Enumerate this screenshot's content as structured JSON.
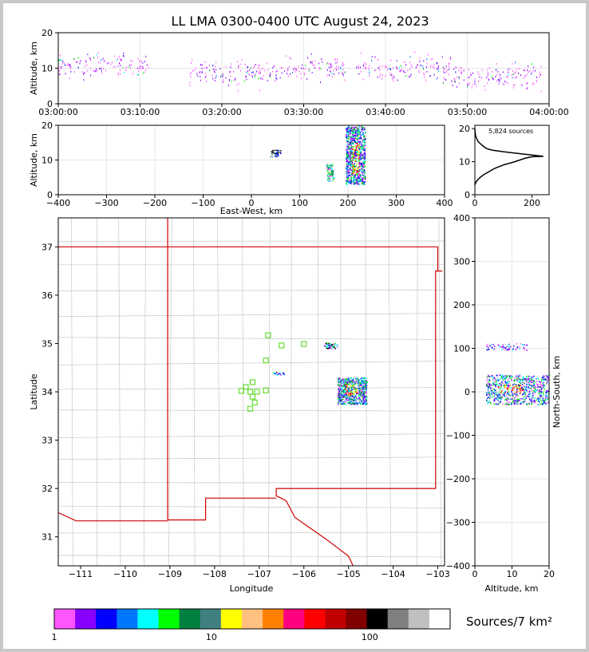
{
  "title": "LL LMA 0300-0400 UTC August 24, 2023",
  "colorbar": {
    "label": "Sources/7 km²",
    "ticks": [
      "1",
      "10",
      "100"
    ],
    "colors": [
      "#ff55ff",
      "#8800ff",
      "#0000ff",
      "#0077ff",
      "#00ffff",
      "#00ff00",
      "#008040",
      "#408080",
      "#ffff00",
      "#ffc080",
      "#ff8000",
      "#ff0080",
      "#ff0000",
      "#c00000",
      "#800000",
      "#000000",
      "#808080",
      "#c0c0c0",
      "#ffffff"
    ]
  },
  "source_count": "5,824 sources",
  "chart_data": [
    {
      "panel": "altitude-time",
      "type": "scatter",
      "xlabel": "",
      "ylabel": "Altitude, km",
      "x_ticks": [
        "03:00:00",
        "03:10:00",
        "03:20:00",
        "03:30:00",
        "03:40:00",
        "03:50:00",
        "04:00:00"
      ],
      "y_ticks": [
        "0",
        "10",
        "20"
      ],
      "xlim": [
        "03:00:00",
        "04:00:00"
      ],
      "ylim": [
        0,
        20
      ],
      "grid": true,
      "activity_bands": [
        {
          "start": "03:00:00",
          "end": "03:11:00",
          "alt_center": 11
        },
        {
          "start": "03:16:00",
          "end": "03:27:00",
          "alt_center": 9
        },
        {
          "start": "03:27:00",
          "end": "03:35:00",
          "alt_center": 10
        },
        {
          "start": "03:36:00",
          "end": "03:48:00",
          "alt_center": 10
        },
        {
          "start": "03:48:00",
          "end": "03:59:00",
          "alt_center": 8
        }
      ]
    },
    {
      "panel": "east-west-altitude",
      "type": "scatter",
      "xlabel": "East-West, km",
      "ylabel": "Altitude, km",
      "x_ticks": [
        "−400",
        "−300",
        "−200",
        "−100",
        "0",
        "100",
        "200",
        "300",
        "400"
      ],
      "y_ticks": [
        "0",
        "10",
        "20"
      ],
      "xlim": [
        -400,
        400
      ],
      "ylim": [
        0,
        20
      ],
      "grid": true,
      "clusters": [
        {
          "x_min": 195,
          "x_max": 235,
          "alt_min": 3,
          "alt_max": 20
        },
        {
          "x_min": 155,
          "x_max": 170,
          "alt_min": 4,
          "alt_max": 9
        },
        {
          "x_min": 38,
          "x_max": 60,
          "alt_min": 11,
          "alt_max": 13
        }
      ]
    },
    {
      "panel": "altitude-histogram",
      "type": "line",
      "xlabel": "",
      "ylabel": "",
      "x_ticks": [
        "0",
        "200"
      ],
      "y_ticks": [
        "0",
        "10",
        "20"
      ],
      "xlim": [
        0,
        260
      ],
      "ylim": [
        0,
        21
      ],
      "x": [
        0,
        5,
        15,
        30,
        50,
        70,
        100,
        140,
        175,
        200,
        240,
        200,
        150,
        100,
        60,
        40,
        25,
        12,
        6,
        2,
        0
      ],
      "y": [
        3,
        4,
        5,
        6,
        7,
        8,
        9,
        10,
        11,
        11.5,
        11.6,
        12,
        12.5,
        13,
        13.5,
        14,
        15,
        16,
        17,
        18,
        20
      ]
    },
    {
      "panel": "plan-view",
      "type": "scatter",
      "xlabel": "Longitude",
      "ylabel": "Latitude",
      "x_ticks": [
        "−111",
        "−110",
        "−109",
        "−108",
        "−107",
        "−106",
        "−105",
        "−104",
        "−103"
      ],
      "y_ticks": [
        "31",
        "32",
        "33",
        "34",
        "35",
        "36",
        "37"
      ],
      "xlim": [
        -111.5,
        -102.85
      ],
      "ylim": [
        30.4,
        37.6
      ],
      "stations": [
        {
          "lon": -106.8,
          "lat": 35.17
        },
        {
          "lon": -106.5,
          "lat": 34.96
        },
        {
          "lon": -106.0,
          "lat": 34.99
        },
        {
          "lon": -106.85,
          "lat": 34.65
        },
        {
          "lon": -107.15,
          "lat": 34.2
        },
        {
          "lon": -107.3,
          "lat": 34.1
        },
        {
          "lon": -107.4,
          "lat": 34.02
        },
        {
          "lon": -107.2,
          "lat": 34.0
        },
        {
          "lon": -107.05,
          "lat": 34.0
        },
        {
          "lon": -106.85,
          "lat": 34.03
        },
        {
          "lon": -107.15,
          "lat": 33.9
        },
        {
          "lon": -107.1,
          "lat": 33.78
        },
        {
          "lon": -107.2,
          "lat": 33.65
        }
      ],
      "clusters": [
        {
          "lon_min": -105.25,
          "lon_max": -104.6,
          "lat_min": 33.75,
          "lat_max": 34.3
        },
        {
          "lon_min": -105.55,
          "lon_max": -105.25,
          "lat_min": 34.9,
          "lat_max": 35.02
        },
        {
          "lon_min": -106.7,
          "lon_max": -106.45,
          "lat_min": 34.35,
          "lat_max": 34.42
        }
      ]
    },
    {
      "panel": "altitude-north-south",
      "type": "scatter",
      "xlabel": "Altitude, km",
      "ylabel": "North-South, km",
      "x_ticks": [
        "0",
        "10",
        "20"
      ],
      "y_ticks": [
        "−400",
        "−300",
        "−200",
        "−100",
        "0",
        "100",
        "200",
        "300",
        "400"
      ],
      "xlim": [
        0,
        20
      ],
      "ylim": [
        -400,
        400
      ],
      "grid": true,
      "clusters": [
        {
          "alt_min": 3,
          "alt_max": 20,
          "ns_min": -28,
          "ns_max": 40
        },
        {
          "alt_min": 3,
          "alt_max": 14,
          "ns_min": 97,
          "ns_max": 112
        }
      ]
    }
  ]
}
